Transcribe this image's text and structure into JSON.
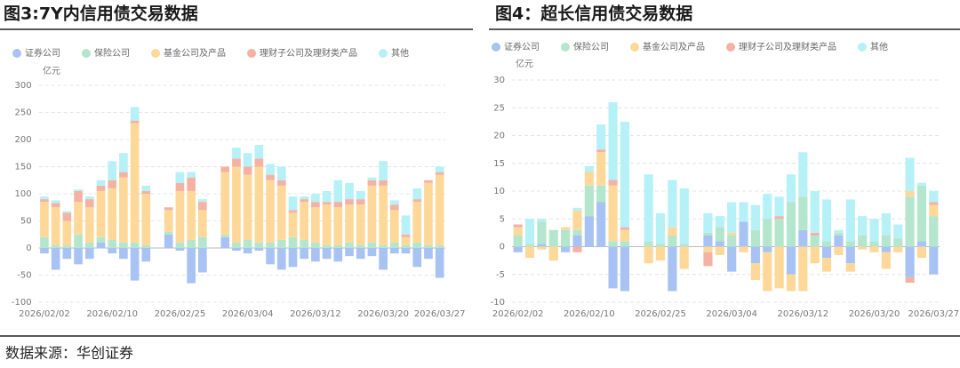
{
  "chart_data": [
    {
      "type": "bar",
      "stacked": true,
      "title": "图3:7Y内信用债交易数据",
      "ylabel": "亿元",
      "categories": [
        "2026/02/02",
        null,
        null,
        null,
        null,
        null,
        "2026/02/10",
        null,
        null,
        null,
        null,
        null,
        "2026/02/25",
        null,
        null,
        null,
        null,
        null,
        "2026/03/04",
        null,
        null,
        null,
        null,
        null,
        "2026/03/12",
        null,
        null,
        null,
        null,
        null,
        "2026/03/20",
        null,
        null,
        null,
        null,
        "2026/03/27"
      ],
      "ylim": [
        -100,
        300
      ],
      "yticks": [
        -100,
        -50,
        0,
        50,
        100,
        150,
        200,
        250,
        300
      ],
      "grid": true,
      "legend": "top",
      "series": [
        {
          "name": "证券公司",
          "color": "#a8c3f3",
          "values": [
            -10,
            -40,
            -20,
            -30,
            -20,
            10,
            -10,
            -20,
            -60,
            -25,
            0,
            25,
            -5,
            -65,
            -45,
            0,
            20,
            -5,
            -10,
            -5,
            -30,
            -40,
            -35,
            -20,
            -25,
            -20,
            -25,
            -15,
            -20,
            -15,
            -40,
            -10,
            -10,
            -35,
            -20,
            -55
          ]
        },
        {
          "name": "保险公司",
          "color": "#b3e6cc",
          "values": [
            20,
            5,
            5,
            25,
            10,
            10,
            15,
            10,
            10,
            5,
            0,
            5,
            10,
            15,
            20,
            0,
            5,
            10,
            15,
            10,
            10,
            15,
            20,
            15,
            10,
            5,
            5,
            10,
            5,
            10,
            5,
            10,
            5,
            10,
            5,
            5
          ]
        },
        {
          "name": "基金公司及产品",
          "color": "#fdd898",
          "values": [
            65,
            70,
            45,
            60,
            65,
            85,
            95,
            120,
            220,
            95,
            0,
            40,
            95,
            90,
            50,
            0,
            115,
            140,
            120,
            140,
            115,
            100,
            45,
            70,
            65,
            75,
            70,
            70,
            75,
            105,
            110,
            60,
            15,
            75,
            115,
            130
          ]
        },
        {
          "name": "理财子公司及理财类产品",
          "color": "#f5b2a4",
          "values": [
            5,
            8,
            15,
            20,
            15,
            10,
            15,
            10,
            5,
            5,
            0,
            5,
            15,
            25,
            15,
            0,
            10,
            15,
            15,
            15,
            10,
            10,
            5,
            5,
            10,
            5,
            10,
            10,
            10,
            10,
            10,
            10,
            5,
            5,
            5,
            5
          ]
        },
        {
          "name": "其他",
          "color": "#b5f1f7",
          "values": [
            5,
            5,
            3,
            3,
            5,
            10,
            35,
            35,
            25,
            10,
            0,
            0,
            20,
            10,
            5,
            0,
            0,
            20,
            25,
            25,
            20,
            25,
            25,
            5,
            15,
            20,
            40,
            30,
            15,
            5,
            35,
            8,
            35,
            20,
            0,
            10
          ]
        }
      ]
    },
    {
      "type": "bar",
      "stacked": true,
      "title": "图4：超长信用债交易数据",
      "ylabel": "亿元",
      "categories": [
        "2026/02/02",
        null,
        null,
        null,
        null,
        null,
        "2026/02/10",
        null,
        null,
        null,
        null,
        null,
        "2026/02/25",
        null,
        null,
        null,
        null,
        null,
        "2026/03/04",
        null,
        null,
        null,
        null,
        null,
        "2026/03/12",
        null,
        null,
        null,
        null,
        null,
        "2026/03/20",
        null,
        null,
        null,
        null,
        "2026/03/27"
      ],
      "ylim": [
        -10,
        30
      ],
      "yticks": [
        -10,
        -5,
        0,
        5,
        10,
        15,
        20,
        25,
        30
      ],
      "grid": true,
      "legend": "top",
      "series": [
        {
          "name": "证券公司",
          "color": "#a8c3f3",
          "values": [
            -1,
            0,
            0.5,
            0,
            -1,
            2,
            5.5,
            8,
            -7.5,
            -8,
            0,
            0,
            0,
            -8,
            0,
            0,
            2,
            1,
            -4.5,
            4.5,
            -3,
            -1,
            0,
            -5,
            3,
            0,
            -2,
            2,
            -3,
            0,
            0,
            -1,
            0,
            -5.5,
            1,
            -5
          ]
        },
        {
          "name": "保险公司",
          "color": "#b3e6cc",
          "values": [
            2,
            0.5,
            4,
            3,
            3,
            1,
            5.5,
            3,
            1,
            1,
            0,
            1,
            0.5,
            2,
            0.5,
            0,
            0.5,
            2.5,
            2,
            0,
            3,
            5,
            5,
            8,
            6,
            2,
            1,
            0.5,
            1,
            2,
            1,
            2,
            1.5,
            9,
            10,
            5.5
          ]
        },
        {
          "name": "基金公司及产品",
          "color": "#fdd898",
          "values": [
            1.5,
            -2,
            -0.5,
            -2.5,
            0.5,
            3.5,
            2.5,
            6,
            10,
            2,
            0,
            -3,
            -2.5,
            1.5,
            -4,
            0,
            -1,
            -1.5,
            0.5,
            -1,
            -3,
            -7,
            -7.5,
            -3,
            -8,
            -3,
            -2.5,
            -1.5,
            -1.5,
            -0.5,
            -1,
            -3,
            -1,
            1,
            -2,
            2
          ]
        },
        {
          "name": "理财子公司及理财类产品",
          "color": "#f5b2a4",
          "values": [
            0.5,
            0,
            0,
            0,
            0,
            -1,
            0,
            0.5,
            1,
            0.5,
            0,
            0,
            0,
            0,
            0,
            0,
            -2.5,
            0,
            0,
            0,
            0,
            0,
            0.5,
            0,
            0,
            0.5,
            0,
            0,
            0,
            0,
            0,
            0,
            0,
            -1,
            0,
            0.5
          ]
        },
        {
          "name": "其他",
          "color": "#b5f1f7",
          "values": [
            0,
            4.5,
            0.5,
            0,
            0,
            0.5,
            1,
            4.5,
            14,
            19,
            0,
            12,
            5.5,
            8.5,
            10,
            0,
            3.5,
            2,
            5.5,
            3.5,
            4.5,
            4.5,
            3.5,
            5,
            8,
            7.5,
            7.5,
            0.5,
            7.5,
            3.5,
            4,
            4,
            2.5,
            6,
            0.5,
            2
          ]
        }
      ]
    }
  ],
  "source": "数据来源：华创证券"
}
